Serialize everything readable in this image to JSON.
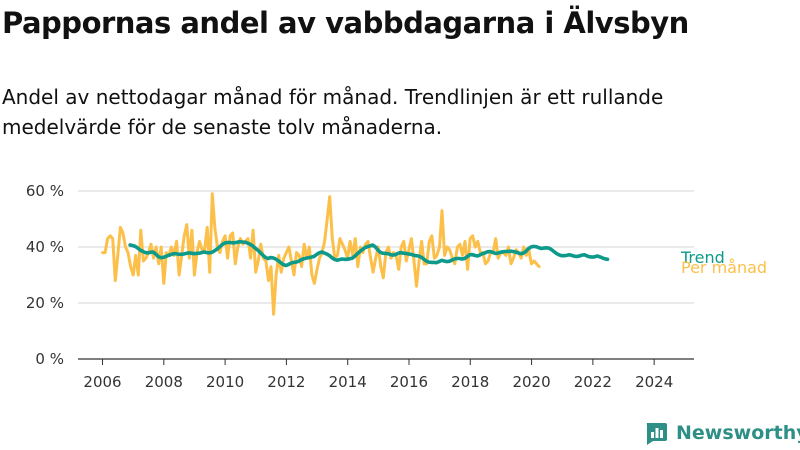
{
  "title": "Pappornas andel av vabbdagarna i Älvsbyn",
  "subtitle": "Andel av nettodagar månad för månad. Trendlinjen är ett rullande medelvärde för de senaste tolv månaderna.",
  "brand": {
    "name": "Newsworthy",
    "icon": "newsworthy-logo-icon",
    "color": "#2e8f87"
  },
  "colors": {
    "monthly": "#fcc04a",
    "trend": "#0d9a8a",
    "grid": "#d4d4d4",
    "axis": "#333333"
  },
  "chart_data": {
    "type": "line",
    "title": "Pappornas andel av vabbdagarna i Älvsbyn",
    "xlabel": "",
    "ylabel": "",
    "x_ticks": [
      "2006",
      "2008",
      "2010",
      "2012",
      "2014",
      "2016",
      "2018",
      "2020",
      "2022",
      "2024"
    ],
    "y_ticks": [
      "0 %",
      "20 %",
      "40 %",
      "60 %"
    ],
    "xlim": [
      2005.2,
      2025.3
    ],
    "ylim": [
      0,
      60
    ],
    "grid": true,
    "legend": "inline-right",
    "series": [
      {
        "name": "Per månad",
        "color": "#fcc04a",
        "x_start": 2006.0,
        "x_step": 0.0833,
        "values": [
          38,
          38,
          43,
          44,
          43,
          28,
          37,
          47,
          45,
          40,
          38,
          33,
          30,
          37,
          30,
          46,
          35,
          36,
          38,
          41,
          36,
          40,
          34,
          40,
          27,
          38,
          37,
          40,
          37,
          42,
          30,
          37,
          44,
          48,
          36,
          46,
          30,
          38,
          42,
          39,
          39,
          47,
          31,
          59,
          47,
          40,
          38,
          42,
          44,
          36,
          44,
          45,
          34,
          40,
          43,
          41,
          42,
          43,
          36,
          46,
          31,
          35,
          41,
          36,
          35,
          28,
          33,
          16,
          30,
          37,
          31,
          36,
          38,
          40,
          35,
          30,
          38,
          37,
          33,
          41,
          36,
          40,
          30,
          27,
          32,
          36,
          38,
          42,
          50,
          58,
          43,
          36,
          37,
          43,
          41,
          39,
          36,
          42,
          37,
          43,
          33,
          40,
          38,
          41,
          42,
          36,
          31,
          36,
          40,
          33,
          29,
          38,
          40,
          36,
          38,
          37,
          32,
          40,
          42,
          35,
          39,
          43,
          35,
          26,
          35,
          42,
          34,
          34,
          42,
          44,
          36,
          37,
          40,
          53,
          37,
          40,
          39,
          36,
          34,
          40,
          41,
          37,
          42,
          32,
          43,
          44,
          40,
          42,
          38,
          38,
          34,
          35,
          38,
          38,
          43,
          36,
          38,
          38,
          37,
          40,
          34,
          36,
          39,
          38,
          36,
          40,
          37,
          39,
          34,
          35,
          34,
          33
        ]
      },
      {
        "name": "Trend",
        "color": "#0d9a8a",
        "x_start": 2006.9,
        "x_step": 0.0833,
        "values": [
          40.7,
          40.5,
          40.2,
          39.6,
          38.9,
          38.4,
          38.0,
          37.9,
          38.1,
          38.2,
          37.5,
          36.6,
          36.2,
          36.3,
          36.6,
          37.0,
          37.3,
          37.6,
          37.6,
          37.4,
          37.4,
          37.5,
          37.7,
          37.9,
          37.8,
          37.6,
          37.7,
          37.8,
          38.0,
          38.2,
          38.0,
          37.9,
          38.1,
          38.6,
          39.2,
          40.0,
          40.8,
          41.4,
          41.6,
          41.6,
          41.5,
          41.5,
          41.7,
          41.9,
          41.8,
          41.7,
          41.4,
          41.0,
          40.4,
          39.6,
          38.9,
          38.0,
          37.1,
          36.3,
          35.9,
          36.2,
          36.1,
          35.7,
          35.1,
          34.4,
          33.7,
          33.4,
          33.7,
          34.2,
          34.5,
          34.6,
          34.9,
          35.4,
          35.8,
          36.0,
          36.2,
          36.4,
          36.6,
          37.3,
          37.9,
          38.2,
          37.9,
          37.5,
          37.0,
          36.2,
          35.6,
          35.3,
          35.5,
          35.7,
          35.6,
          35.6,
          35.8,
          36.0,
          36.7,
          37.6,
          38.4,
          39.1,
          39.8,
          40.1,
          40.4,
          40.7,
          40.1,
          39.0,
          38.1,
          37.8,
          37.7,
          37.6,
          37.3,
          37.1,
          37.3,
          37.8,
          38.0,
          37.8,
          37.7,
          37.5,
          37.4,
          37.1,
          36.9,
          36.8,
          36.4,
          35.7,
          35.0,
          34.6,
          34.5,
          34.5,
          34.4,
          34.8,
          35.2,
          35.0,
          34.8,
          34.9,
          35.3,
          35.7,
          35.9,
          35.9,
          35.7,
          35.9,
          36.5,
          37.2,
          37.3,
          37.0,
          36.8,
          37.1,
          37.6,
          37.9,
          38.3,
          38.4,
          38.1,
          37.7,
          37.8,
          38.1,
          38.3,
          38.4,
          38.4,
          38.5,
          38.4,
          38.2,
          37.9,
          37.6,
          37.8,
          38.4,
          39.4,
          40.0,
          40.2,
          40.1,
          39.8,
          39.5,
          39.6,
          39.7,
          39.6,
          39.1,
          38.4,
          37.7,
          37.2,
          36.9,
          36.9,
          37.0,
          37.2,
          37.0,
          36.7,
          36.6,
          36.8,
          37.1,
          37.2,
          36.8,
          36.5,
          36.4,
          36.5,
          36.8,
          36.5,
          36.1,
          35.8,
          35.6
        ]
      }
    ]
  }
}
